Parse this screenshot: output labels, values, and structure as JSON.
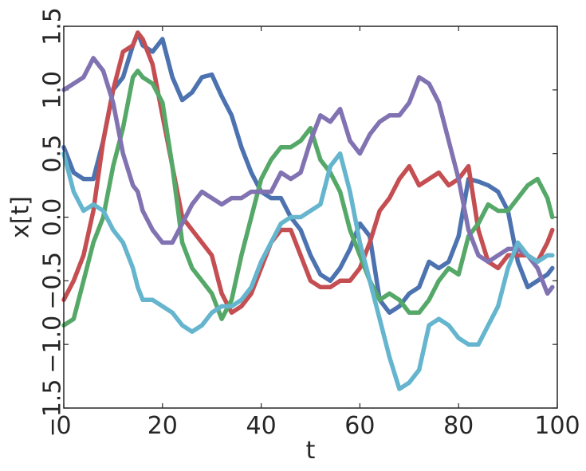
{
  "chart_data": {
    "type": "line",
    "title": "",
    "xlabel": "t",
    "ylabel": "x[t]",
    "xlim": [
      0,
      100
    ],
    "ylim": [
      -1.5,
      1.5
    ],
    "xticks": [
      0,
      20,
      40,
      60,
      80,
      100
    ],
    "yticks": [
      -1.5,
      -1.0,
      -0.5,
      0.0,
      0.5,
      1.0,
      1.5
    ],
    "xtick_labels": [
      "0",
      "20",
      "40",
      "60",
      "80",
      "100"
    ],
    "ytick_labels": [
      "−1.5",
      "−1.0",
      "−0.5",
      "0.0",
      "0.5",
      "1.0",
      "1.5"
    ],
    "grid": false,
    "series": [
      {
        "color": "#4C72B0",
        "x": [
          0,
          2,
          4,
          6,
          8,
          10,
          12,
          14,
          15,
          16,
          18,
          20,
          22,
          24,
          26,
          28,
          30,
          32,
          34,
          36,
          38,
          40,
          42,
          44,
          46,
          48,
          50,
          52,
          54,
          56,
          58,
          60,
          62,
          64,
          66,
          68,
          70,
          72,
          74,
          76,
          78,
          80,
          82,
          84,
          86,
          88,
          90,
          92,
          94,
          96,
          98,
          99
        ],
        "y": [
          0.55,
          0.35,
          0.3,
          0.3,
          0.6,
          1.0,
          1.1,
          1.35,
          1.45,
          1.35,
          1.3,
          1.4,
          1.1,
          0.92,
          0.98,
          1.1,
          1.12,
          0.95,
          0.8,
          0.55,
          0.35,
          0.2,
          0.15,
          0.15,
          0.0,
          -0.1,
          -0.3,
          -0.45,
          -0.5,
          -0.4,
          -0.25,
          -0.05,
          -0.15,
          -0.65,
          -0.75,
          -0.7,
          -0.6,
          -0.55,
          -0.35,
          -0.4,
          -0.35,
          -0.15,
          0.3,
          0.28,
          0.25,
          0.2,
          0.05,
          -0.35,
          -0.55,
          -0.5,
          -0.45,
          -0.4
        ]
      },
      {
        "color": "#C44E52",
        "x": [
          0,
          2,
          4,
          6,
          8,
          10,
          12,
          14,
          15,
          16,
          18,
          20,
          22,
          24,
          26,
          28,
          30,
          32,
          34,
          36,
          38,
          40,
          42,
          44,
          46,
          48,
          50,
          52,
          54,
          56,
          58,
          60,
          62,
          64,
          66,
          68,
          70,
          72,
          74,
          76,
          78,
          80,
          82,
          84,
          86,
          88,
          90,
          92,
          94,
          96,
          98,
          99
        ],
        "y": [
          -0.65,
          -0.5,
          -0.3,
          0.05,
          0.6,
          1.0,
          1.3,
          1.35,
          1.45,
          1.4,
          1.2,
          0.8,
          0.4,
          0.0,
          -0.1,
          -0.2,
          -0.3,
          -0.6,
          -0.75,
          -0.7,
          -0.6,
          -0.4,
          -0.2,
          -0.1,
          -0.1,
          -0.3,
          -0.5,
          -0.55,
          -0.55,
          -0.5,
          -0.5,
          -0.4,
          -0.2,
          0.05,
          0.15,
          0.3,
          0.4,
          0.25,
          0.3,
          0.35,
          0.25,
          0.3,
          0.4,
          -0.1,
          -0.35,
          -0.4,
          -0.3,
          -0.3,
          -0.3,
          -0.35,
          -0.2,
          -0.1
        ]
      },
      {
        "color": "#55A868",
        "x": [
          0,
          2,
          4,
          6,
          8,
          10,
          12,
          14,
          15,
          16,
          18,
          20,
          22,
          24,
          26,
          28,
          30,
          32,
          34,
          36,
          38,
          40,
          42,
          44,
          46,
          48,
          50,
          52,
          54,
          56,
          58,
          60,
          62,
          64,
          66,
          68,
          70,
          72,
          74,
          76,
          78,
          80,
          82,
          84,
          86,
          88,
          90,
          92,
          94,
          96,
          98,
          99
        ],
        "y": [
          -0.85,
          -0.8,
          -0.5,
          -0.2,
          0.0,
          0.4,
          0.7,
          1.1,
          1.15,
          1.1,
          1.05,
          0.9,
          0.4,
          -0.2,
          -0.4,
          -0.5,
          -0.6,
          -0.8,
          -0.65,
          -0.3,
          0.0,
          0.3,
          0.45,
          0.55,
          0.55,
          0.6,
          0.7,
          0.45,
          0.35,
          0.2,
          -0.1,
          -0.3,
          -0.5,
          -0.65,
          -0.6,
          -0.65,
          -0.75,
          -0.75,
          -0.65,
          -0.5,
          -0.4,
          -0.45,
          -0.15,
          -0.05,
          0.1,
          0.05,
          0.05,
          0.15,
          0.25,
          0.3,
          0.15,
          0.0
        ]
      },
      {
        "color": "#8172B2",
        "x": [
          0,
          2,
          4,
          6,
          8,
          10,
          12,
          14,
          15,
          16,
          18,
          20,
          22,
          24,
          26,
          28,
          30,
          32,
          34,
          36,
          38,
          40,
          42,
          44,
          46,
          48,
          50,
          52,
          54,
          56,
          58,
          60,
          62,
          64,
          66,
          68,
          70,
          72,
          74,
          76,
          78,
          80,
          82,
          84,
          86,
          88,
          90,
          92,
          94,
          96,
          98,
          99
        ],
        "y": [
          1.0,
          1.05,
          1.1,
          1.25,
          1.15,
          0.9,
          0.5,
          0.25,
          0.2,
          0.05,
          -0.1,
          -0.2,
          -0.2,
          -0.05,
          0.1,
          0.2,
          0.15,
          0.1,
          0.15,
          0.15,
          0.2,
          0.2,
          0.2,
          0.35,
          0.3,
          0.35,
          0.6,
          0.8,
          0.75,
          0.85,
          0.6,
          0.5,
          0.65,
          0.75,
          0.8,
          0.8,
          0.9,
          1.1,
          1.05,
          0.9,
          0.6,
          0.3,
          -0.1,
          -0.3,
          -0.35,
          -0.3,
          -0.25,
          -0.25,
          -0.3,
          -0.4,
          -0.6,
          -0.55
        ]
      },
      {
        "color": "#64B5CD",
        "x": [
          0,
          2,
          4,
          6,
          8,
          10,
          12,
          14,
          15,
          16,
          18,
          20,
          22,
          24,
          26,
          28,
          30,
          32,
          34,
          36,
          38,
          40,
          42,
          44,
          46,
          48,
          50,
          52,
          54,
          56,
          58,
          60,
          62,
          64,
          66,
          68,
          70,
          72,
          74,
          76,
          78,
          80,
          82,
          84,
          86,
          88,
          90,
          92,
          94,
          96,
          98,
          99
        ],
        "y": [
          0.5,
          0.2,
          0.05,
          0.1,
          0.05,
          -0.1,
          -0.2,
          -0.4,
          -0.55,
          -0.65,
          -0.65,
          -0.7,
          -0.75,
          -0.85,
          -0.9,
          -0.85,
          -0.75,
          -0.7,
          -0.7,
          -0.65,
          -0.55,
          -0.35,
          -0.2,
          -0.05,
          0.0,
          0.0,
          0.05,
          0.1,
          0.4,
          0.5,
          0.2,
          -0.2,
          -0.5,
          -0.8,
          -1.1,
          -1.35,
          -1.3,
          -1.2,
          -0.85,
          -0.8,
          -0.85,
          -0.95,
          -1.0,
          -1.0,
          -0.85,
          -0.7,
          -0.4,
          -0.2,
          -0.3,
          -0.35,
          -0.3,
          -0.3
        ]
      }
    ]
  }
}
